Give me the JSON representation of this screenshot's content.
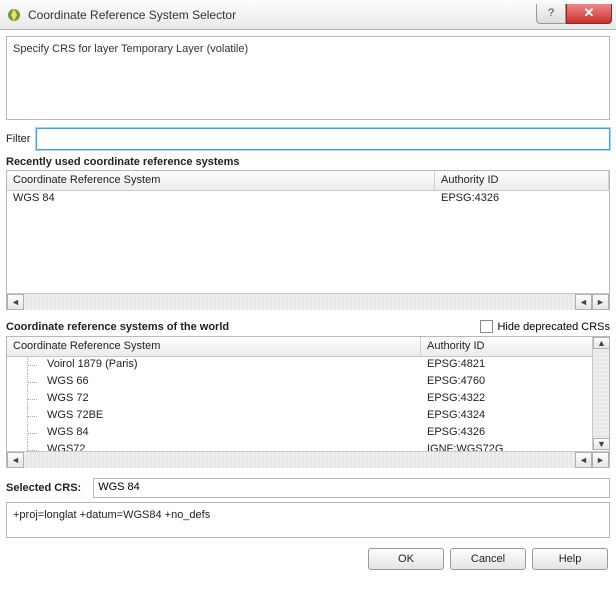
{
  "window": {
    "title": "Coordinate Reference System Selector"
  },
  "description": "Specify CRS for layer Temporary Layer (volatile)",
  "filter": {
    "label": "Filter",
    "value": ""
  },
  "recent": {
    "heading": "Recently used coordinate reference systems",
    "columns": {
      "crs": "Coordinate Reference System",
      "auth": "Authority ID"
    },
    "rows": [
      {
        "crs": "WGS 84",
        "auth": "EPSG:4326"
      }
    ]
  },
  "world": {
    "heading": "Coordinate reference systems of the world",
    "hide_deprecated_label": "Hide deprecated CRSs",
    "hide_deprecated_checked": false,
    "columns": {
      "crs": "Coordinate Reference System",
      "auth": "Authority ID"
    },
    "rows": [
      {
        "crs": "Voirol 1879 (Paris)",
        "auth": "EPSG:4821"
      },
      {
        "crs": "WGS 66",
        "auth": "EPSG:4760"
      },
      {
        "crs": "WGS 72",
        "auth": "EPSG:4322"
      },
      {
        "crs": "WGS 72BE",
        "auth": "EPSG:4324"
      },
      {
        "crs": "WGS 84",
        "auth": "EPSG:4326"
      },
      {
        "crs": "WGS72",
        "auth": "IGNF:WGS72G"
      }
    ]
  },
  "selected": {
    "label": "Selected CRS:",
    "value": "WGS 84"
  },
  "proj": "+proj=longlat +datum=WGS84 +no_defs",
  "buttons": {
    "ok": "OK",
    "cancel": "Cancel",
    "help": "Help"
  }
}
